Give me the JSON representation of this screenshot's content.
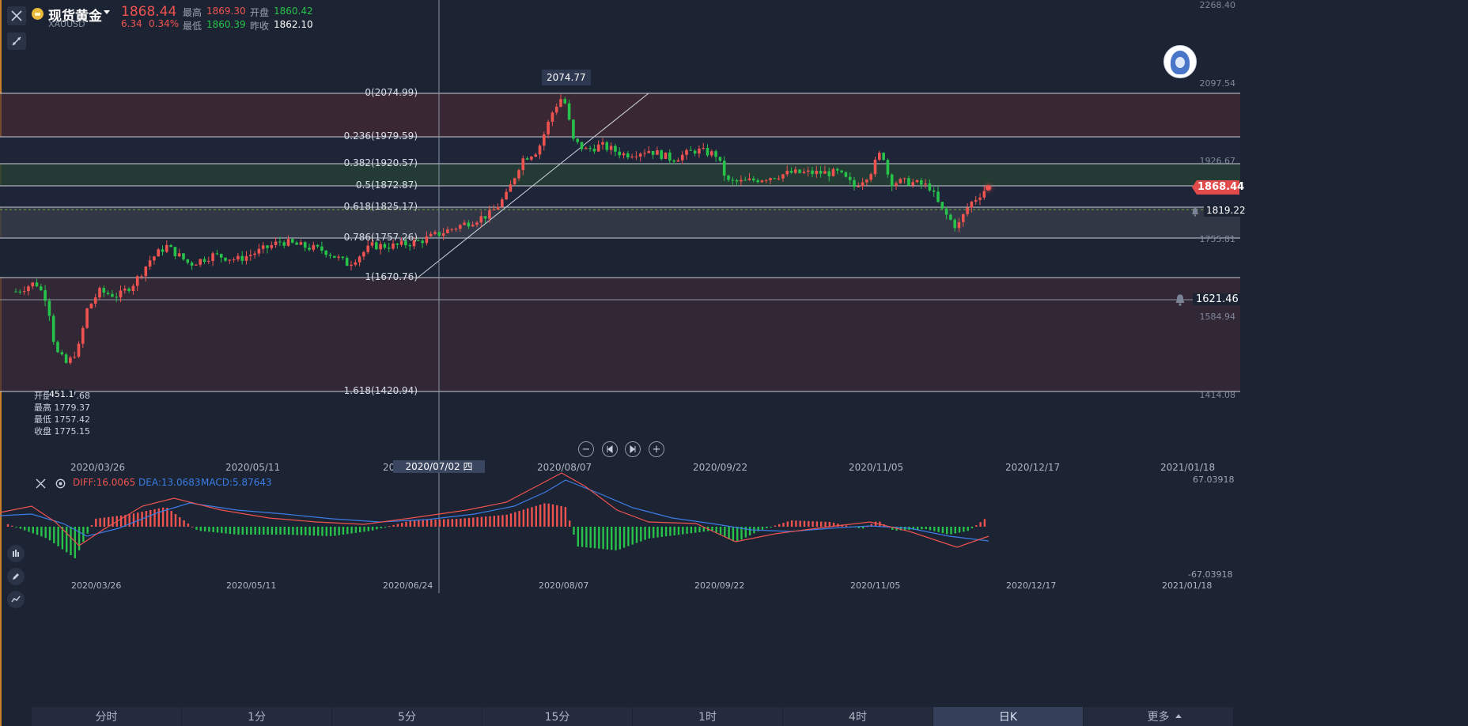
{
  "header": {
    "symbol_name": "现货黄金",
    "symbol_code": "XAUUSD",
    "price": "1868.44",
    "change": "6.34",
    "change_pct": "0.34%",
    "high_label": "最高",
    "high_value": "1869.30",
    "open_label": "开盘",
    "open_value": "1860.42",
    "low_label": "最低",
    "low_value": "1860.39",
    "prev_close_label": "昨收",
    "prev_close_value": "1862.10"
  },
  "chart": {
    "peak_label": "2074.77",
    "fib_levels": [
      {
        "label": "0(2074.99)",
        "price": 2074.99
      },
      {
        "label": "0.236(1979.59)",
        "price": 1979.59
      },
      {
        "label": "0.382(1920.57)",
        "price": 1920.57
      },
      {
        "label": "0.5(1872.87)",
        "price": 1872.87
      },
      {
        "label": "0.618(1825.17)",
        "price": 1825.17
      },
      {
        "label": "0.786(1757.26)",
        "price": 1757.26
      },
      {
        "label": "1(1670.76)",
        "price": 1670.76
      },
      {
        "label": "1.618(1420.94)",
        "price": 1420.94
      }
    ],
    "y_axis_labels": [
      "2268.40",
      "2097.54",
      "1926.67",
      "1755.81",
      "1584.94",
      "1414.08"
    ],
    "current_price_tag": "1868.44",
    "alert_1": "1819.22",
    "alert_2": "1621.46",
    "x_labels": [
      "2020/03/26",
      "2020/05/11",
      "20",
      "2020/08/07",
      "2020/09/22",
      "2020/11/05",
      "2020/12/17",
      "2021/01/18"
    ],
    "crosshair_date": "2020/07/02 四",
    "ohlc_box": {
      "open": "开盘 1767.68",
      "high": "最高 1779.37",
      "low": "最低 1757.42",
      "close": "收盘 1775.15",
      "overlay": "451.1"
    }
  },
  "chart_data": {
    "type": "candlestick",
    "x_range": [
      "2020/03/26",
      "2021/01/18"
    ],
    "ylim": [
      1414.08,
      2268.4
    ],
    "key_points": [
      {
        "date": "2020/03",
        "approx_close": 1470
      },
      {
        "date": "2020/03/26",
        "approx_close": 1630
      },
      {
        "date": "2020/05/11",
        "approx_close": 1700
      },
      {
        "date": "2020/07/02",
        "approx_close": 1775.15
      },
      {
        "date": "2020/08/07",
        "approx_close": 2035
      },
      {
        "date": "2020/09/22",
        "approx_close": 1900
      },
      {
        "date": "2020/11/05",
        "approx_close": 1950
      },
      {
        "date": "2020/12",
        "approx_close": 1868.44
      }
    ]
  },
  "macd": {
    "diff": "DIFF:16.0065",
    "dea": "DEA:13.0683",
    "macd": "MACD:5.87643",
    "y_top": "67.03918",
    "y_bottom": "-67.03918",
    "x_labels": [
      "2020/03/26",
      "2020/05/11",
      "2020/06/24",
      "2020/08/07",
      "2020/09/22",
      "2020/11/05",
      "2020/12/17",
      "2021/01/18"
    ]
  },
  "timeframes": [
    "分时",
    "1分",
    "5分",
    "15分",
    "1时",
    "4时",
    "日K",
    "更多"
  ],
  "active_timeframe": "日K",
  "colors": {
    "background": "#1c2333",
    "up": "#ef5350",
    "down": "#26c24a",
    "dea_line": "#3b7de5",
    "diff_line": "#ef5350"
  }
}
